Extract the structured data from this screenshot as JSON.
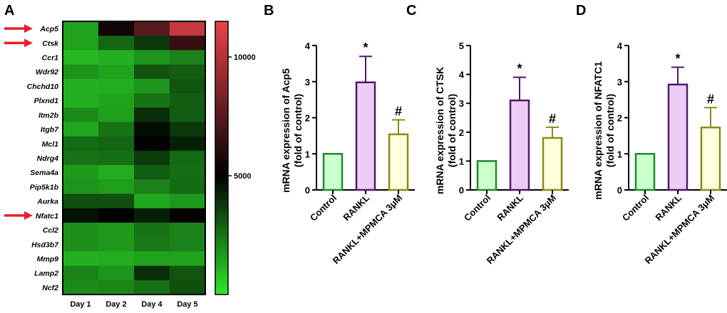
{
  "panels": {
    "A": "A",
    "B": "B",
    "C": "C",
    "D": "D"
  },
  "chart_data": [
    {
      "type": "heatmap",
      "panel": "A",
      "genes": [
        "Acp5",
        "Ctsk",
        "Ccr1",
        "Wdr92",
        "Chchd10",
        "Plxnd1",
        "Itm2b",
        "Itgb7",
        "Mcl1",
        "Ndrg4",
        "Sema4a",
        "Pip5k1b",
        "Aurka",
        "Nfatc1",
        "Ccl2",
        "Hsd3b7",
        "Mmp9",
        "Lamp2",
        "Ncf2"
      ],
      "highlighted": [
        "Acp5",
        "Ctsk",
        "Nfatc1"
      ],
      "days": [
        "Day 1",
        "Day 2",
        "Day 4",
        "Day 5"
      ],
      "values": [
        [
          1500,
          5500,
          7500,
          10500
        ],
        [
          1500,
          2800,
          3800,
          6500
        ],
        [
          1000,
          1200,
          1800,
          2200
        ],
        [
          1800,
          1500,
          3200,
          3000
        ],
        [
          1200,
          1300,
          1800,
          3200
        ],
        [
          1200,
          1500,
          2500,
          3000
        ],
        [
          2000,
          1600,
          4000,
          3000
        ],
        [
          1400,
          2500,
          4700,
          3800
        ],
        [
          2700,
          2800,
          5100,
          4300
        ],
        [
          2500,
          2600,
          3700,
          2700
        ],
        [
          1700,
          1300,
          3000,
          2600
        ],
        [
          1800,
          1600,
          2200,
          2700
        ],
        [
          3300,
          3300,
          1400,
          1700
        ],
        [
          4600,
          5000,
          4300,
          5200
        ],
        [
          1900,
          1700,
          2500,
          2200
        ],
        [
          1900,
          1700,
          2400,
          2200
        ],
        [
          1200,
          1300,
          1500,
          1500
        ],
        [
          2200,
          1800,
          4000,
          3200
        ],
        [
          2000,
          2100,
          2600,
          3300
        ]
      ],
      "colorbar": {
        "min": 0,
        "max": 11500,
        "ticks": [
          5000,
          10000
        ],
        "tick_labels": [
          "5000",
          "10000"
        ],
        "low_color": "#2ee82a",
        "mid_color": "#000000",
        "high_color": "#e8434a"
      }
    },
    {
      "type": "bar",
      "panel": "B",
      "categories": [
        "Control",
        "RANKL",
        "RANKL+MPMCA 3μM"
      ],
      "values": [
        1.0,
        2.98,
        1.54
      ],
      "errors": [
        0,
        0.72,
        0.4
      ],
      "annotations": [
        "",
        "*",
        "#"
      ],
      "fill_colors": [
        "#ccffcc",
        "#eeccf5",
        "#ffffdd"
      ],
      "edge_colors": [
        "#1f8a2c",
        "#4b1a6b",
        "#8a8a1a"
      ],
      "ylabel_line1": "mRNA expression of Acp5",
      "ylabel_line2": "(fold of control)",
      "ylim": [
        0,
        4
      ],
      "yticks": [
        "0",
        "1",
        "2",
        "3",
        "4"
      ]
    },
    {
      "type": "bar",
      "panel": "C",
      "categories": [
        "Control",
        "RANKL",
        "RANKL+MPMCA 3μM"
      ],
      "values": [
        1.0,
        3.1,
        1.8
      ],
      "errors": [
        0,
        0.8,
        0.37
      ],
      "annotations": [
        "",
        "*",
        "#"
      ],
      "fill_colors": [
        "#ccffcc",
        "#eeccf5",
        "#ffffdd"
      ],
      "edge_colors": [
        "#1f8a2c",
        "#4b1a6b",
        "#8a8a1a"
      ],
      "ylabel_line1": "mRNA expression of CTSK",
      "ylabel_line2": "(fold of control)",
      "ylim": [
        0,
        5
      ],
      "yticks": [
        "0",
        "1",
        "2",
        "3",
        "4",
        "5"
      ]
    },
    {
      "type": "bar",
      "panel": "D",
      "categories": [
        "Control",
        "RANKL",
        "RANKL+MPMCA 3μM"
      ],
      "values": [
        1.0,
        2.92,
        1.73
      ],
      "errors": [
        0,
        0.48,
        0.55
      ],
      "annotations": [
        "",
        "*",
        "#"
      ],
      "fill_colors": [
        "#ccffcc",
        "#eeccf5",
        "#ffffdd"
      ],
      "edge_colors": [
        "#1f8a2c",
        "#4b1a6b",
        "#8a8a1a"
      ],
      "ylabel_line1": "mRNA expression of NFATC1",
      "ylabel_line2": "(fold of control)",
      "ylim": [
        0,
        4
      ],
      "yticks": [
        "0",
        "1",
        "2",
        "3",
        "4"
      ]
    }
  ]
}
